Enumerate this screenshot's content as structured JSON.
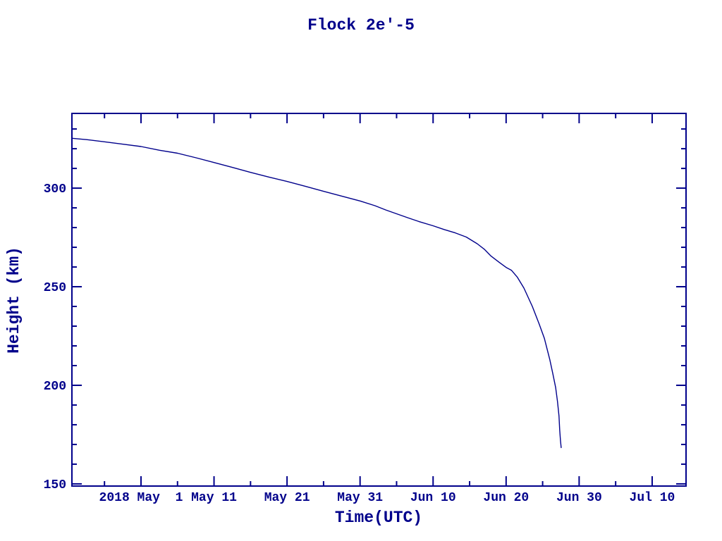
{
  "colors": {
    "ink": "#00008B",
    "background": "#ffffff"
  },
  "chart_data": {
    "type": "line",
    "title": "Flock 2e'-5",
    "xlabel": "Time(UTC)",
    "ylabel": "Height (km)",
    "grid": false,
    "legend": false,
    "x_axis_note": "date axis, 2018; day 0 = plot left edge (approx Apr 21); major ticks every 10 days, minor every 5",
    "x_domain_days": [
      0,
      84.1
    ],
    "ylim": [
      148.9,
      337.9
    ],
    "x_major_ticks": [
      {
        "day": 9.46,
        "label": "2018 May  1"
      },
      {
        "day": 19.46,
        "label": "May 11"
      },
      {
        "day": 29.46,
        "label": "May 21"
      },
      {
        "day": 39.46,
        "label": "May 31"
      },
      {
        "day": 49.46,
        "label": "Jun 10"
      },
      {
        "day": 59.46,
        "label": "Jun 20"
      },
      {
        "day": 69.46,
        "label": "Jun 30"
      },
      {
        "day": 79.46,
        "label": "Jul 10"
      }
    ],
    "x_minor_tick_days": [
      4.46,
      14.46,
      24.46,
      34.46,
      44.46,
      54.46,
      64.46,
      74.46
    ],
    "y_major_ticks": [
      150,
      200,
      250,
      300
    ],
    "y_minor_ticks": [
      160,
      170,
      180,
      190,
      210,
      220,
      230,
      240,
      260,
      270,
      280,
      290,
      310,
      320,
      330
    ],
    "series": [
      {
        "name": "Flock 2e'-5",
        "color": "#00008B",
        "points_day_km": [
          [
            0.0,
            325.3
          ],
          [
            2.0,
            324.6
          ],
          [
            4.46,
            323.5
          ],
          [
            7.0,
            322.3
          ],
          [
            9.46,
            321.1
          ],
          [
            12.0,
            319.2
          ],
          [
            14.46,
            317.7
          ],
          [
            17.0,
            315.4
          ],
          [
            19.46,
            313.0
          ],
          [
            22.0,
            310.5
          ],
          [
            24.46,
            308.0
          ],
          [
            27.0,
            305.6
          ],
          [
            29.46,
            303.4
          ],
          [
            32.0,
            300.9
          ],
          [
            34.46,
            298.4
          ],
          [
            37.0,
            295.9
          ],
          [
            39.46,
            293.5
          ],
          [
            41.5,
            291.1
          ],
          [
            43.0,
            288.9
          ],
          [
            44.46,
            287.0
          ],
          [
            46.0,
            285.0
          ],
          [
            47.5,
            283.1
          ],
          [
            49.46,
            280.9
          ],
          [
            51.0,
            279.0
          ],
          [
            52.5,
            277.3
          ],
          [
            54.0,
            275.2
          ],
          [
            55.5,
            271.8
          ],
          [
            56.5,
            268.9
          ],
          [
            57.4,
            265.5
          ],
          [
            58.5,
            262.4
          ],
          [
            59.46,
            259.8
          ],
          [
            60.2,
            258.3
          ],
          [
            61.0,
            254.8
          ],
          [
            61.9,
            249.3
          ],
          [
            63.05,
            240.0
          ],
          [
            64.0,
            231.0
          ],
          [
            64.7,
            223.8
          ],
          [
            65.45,
            213.0
          ],
          [
            65.85,
            206.0
          ],
          [
            66.25,
            198.8
          ],
          [
            66.5,
            191.7
          ],
          [
            66.7,
            184.5
          ],
          [
            66.8,
            177.4
          ],
          [
            66.9,
            172.0
          ],
          [
            67.0,
            168.4
          ]
        ]
      }
    ]
  }
}
